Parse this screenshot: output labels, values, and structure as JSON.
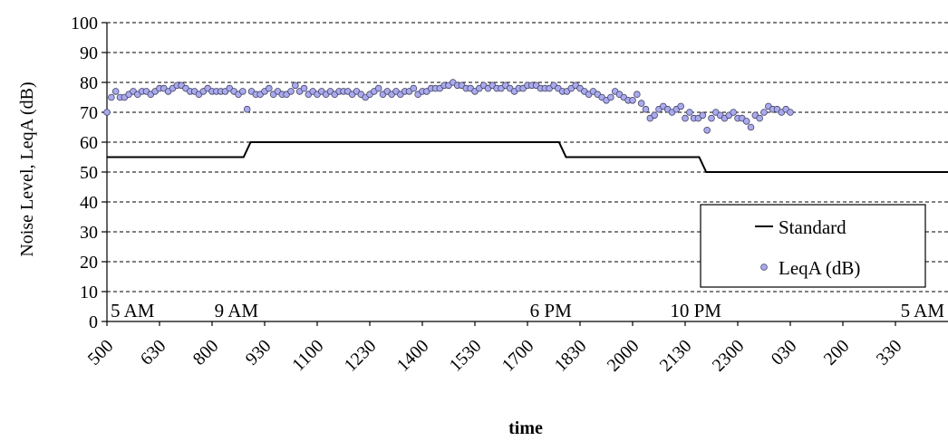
{
  "chart_data": {
    "type": "line",
    "title": "",
    "xlabel": "time",
    "ylabel": "Noise Level, LeqA (dB)",
    "ylim": [
      0,
      100
    ],
    "yticks": [
      0,
      10,
      20,
      30,
      40,
      50,
      60,
      70,
      80,
      90,
      100
    ],
    "y_grid": true,
    "xlim_hours": [
      0,
      24
    ],
    "x_tick_labels": [
      "500",
      "630",
      "800",
      "930",
      "1100",
      "1230",
      "1400",
      "1530",
      "1700",
      "1830",
      "2000",
      "2130",
      "2300",
      "030",
      "200",
      "330"
    ],
    "x_tick_hours": [
      0,
      1.5,
      3,
      4.5,
      6,
      7.5,
      9,
      10.5,
      12,
      13.5,
      15,
      16.5,
      18,
      19.5,
      21,
      22.5
    ],
    "annotations": [
      {
        "text": "5 AM",
        "hour": 0
      },
      {
        "text": "9 AM",
        "hour": 4
      },
      {
        "text": "6 PM",
        "hour": 13
      },
      {
        "text": "10 PM",
        "hour": 17
      },
      {
        "text": "5 AM",
        "hour": 24
      }
    ],
    "legend": {
      "position": "bottom-right",
      "entries": [
        "Standard",
        "LeqA (dB)"
      ]
    },
    "series": [
      {
        "name": "Standard",
        "style": "line",
        "color": "#000000",
        "x_hours": [
          0,
          3.9,
          4.1,
          12.9,
          13.1,
          16.9,
          17.1,
          24
        ],
        "values": [
          55,
          55,
          60,
          60,
          55,
          55,
          50,
          50
        ]
      },
      {
        "name": "LeqA (dB)",
        "style": "marker",
        "color": "#9999dd",
        "interval_hours": 0.125,
        "values": [
          70,
          75,
          77,
          75,
          75,
          76,
          77,
          76,
          77,
          77,
          76,
          77,
          78,
          78,
          77,
          78,
          79,
          79,
          78,
          77,
          77,
          76,
          77,
          78,
          77,
          77,
          77,
          77,
          78,
          77,
          76,
          77,
          71,
          77,
          76,
          76,
          77,
          78,
          76,
          77,
          76,
          76,
          77,
          79,
          77,
          78,
          76,
          77,
          76,
          77,
          76,
          77,
          76,
          77,
          77,
          77,
          76,
          77,
          76,
          75,
          76,
          77,
          78,
          76,
          77,
          76,
          77,
          76,
          77,
          77,
          78,
          76,
          77,
          77,
          78,
          78,
          78,
          79,
          79,
          80,
          79,
          79,
          78,
          78,
          77,
          78,
          79,
          78,
          79,
          78,
          78,
          79,
          78,
          77,
          78,
          78,
          79,
          79,
          79,
          78,
          78,
          78,
          79,
          78,
          77,
          77,
          78,
          79,
          78,
          77,
          76,
          77,
          76,
          75,
          74,
          75,
          77,
          76,
          75,
          74,
          74,
          76,
          73,
          71,
          68,
          69,
          71,
          72,
          71,
          70,
          71,
          72,
          68,
          70,
          68,
          68,
          69,
          64,
          68,
          70,
          69,
          68,
          69,
          70,
          68,
          68,
          67,
          65,
          69,
          68,
          70,
          72,
          71,
          71,
          70,
          71,
          70
        ]
      }
    ]
  }
}
